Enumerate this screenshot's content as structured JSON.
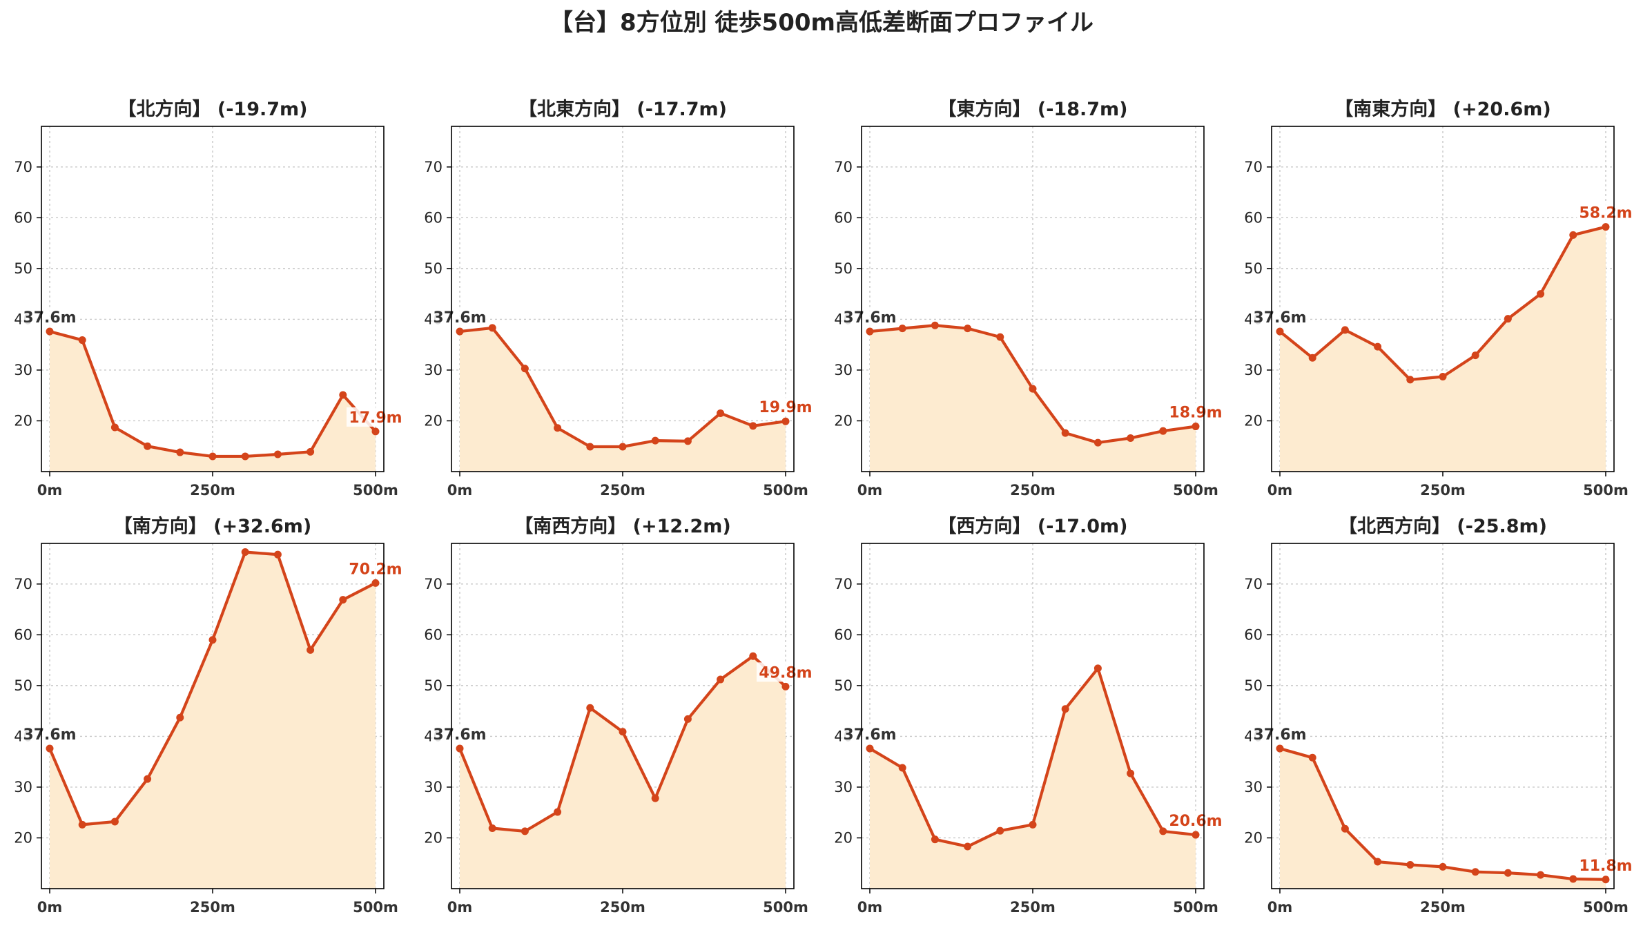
{
  "title": "【台】8方位別 徒歩500m高低差断面プロファイル",
  "colors": {
    "line": "#d4441a",
    "fill": "#fdebd0",
    "start_label": "#333333",
    "end_label": "#d4441a"
  },
  "chart_data": [
    {
      "type": "area",
      "title": "【北方向】 (-19.7m)",
      "direction": "北方向",
      "diff": "-19.7m",
      "x": [
        0,
        50,
        100,
        150,
        200,
        250,
        300,
        350,
        400,
        450,
        500
      ],
      "xtick_labels": [
        "0m",
        "250m",
        "500m"
      ],
      "ytick_labels": [
        "20",
        "30",
        "40",
        "50",
        "60",
        "70"
      ],
      "y": [
        37.6,
        35.9,
        18.7,
        15.0,
        13.8,
        13.0,
        13.0,
        13.4,
        13.9,
        25.1,
        17.9
      ],
      "start_label": "37.6m",
      "end_label": "17.9m",
      "ylim": [
        10,
        78
      ],
      "grid": true
    },
    {
      "type": "area",
      "title": "【北東方向】 (-17.7m)",
      "direction": "北東方向",
      "diff": "-17.7m",
      "x": [
        0,
        50,
        100,
        150,
        200,
        250,
        300,
        350,
        400,
        450,
        500
      ],
      "xtick_labels": [
        "0m",
        "250m",
        "500m"
      ],
      "ytick_labels": [
        "20",
        "30",
        "40",
        "50",
        "60",
        "70"
      ],
      "y": [
        37.6,
        38.3,
        30.3,
        18.6,
        14.9,
        14.9,
        16.1,
        16.0,
        21.5,
        19.0,
        19.9
      ],
      "start_label": "37.6m",
      "end_label": "19.9m",
      "ylim": [
        10,
        78
      ],
      "grid": true
    },
    {
      "type": "area",
      "title": "【東方向】 (-18.7m)",
      "direction": "東方向",
      "diff": "-18.7m",
      "x": [
        0,
        50,
        100,
        150,
        200,
        250,
        300,
        350,
        400,
        450,
        500
      ],
      "xtick_labels": [
        "0m",
        "250m",
        "500m"
      ],
      "ytick_labels": [
        "20",
        "30",
        "40",
        "50",
        "60",
        "70"
      ],
      "y": [
        37.6,
        38.2,
        38.8,
        38.2,
        36.5,
        26.3,
        17.6,
        15.7,
        16.6,
        18.0,
        18.9
      ],
      "start_label": "37.6m",
      "end_label": "18.9m",
      "ylim": [
        10,
        78
      ],
      "grid": true
    },
    {
      "type": "area",
      "title": "【南東方向】 (+20.6m)",
      "direction": "南東方向",
      "diff": "+20.6m",
      "x": [
        0,
        50,
        100,
        150,
        200,
        250,
        300,
        350,
        400,
        450,
        500
      ],
      "xtick_labels": [
        "0m",
        "250m",
        "500m"
      ],
      "ytick_labels": [
        "20",
        "30",
        "40",
        "50",
        "60",
        "70"
      ],
      "y": [
        37.6,
        32.4,
        37.9,
        34.6,
        28.1,
        28.7,
        32.9,
        40.1,
        45.0,
        56.6,
        58.2
      ],
      "start_label": "37.6m",
      "end_label": "58.2m",
      "ylim": [
        10,
        78
      ],
      "grid": true
    },
    {
      "type": "area",
      "title": "【南方向】 (+32.6m)",
      "direction": "南方向",
      "diff": "+32.6m",
      "x": [
        0,
        50,
        100,
        150,
        200,
        250,
        300,
        350,
        400,
        450,
        500
      ],
      "xtick_labels": [
        "0m",
        "250m",
        "500m"
      ],
      "ytick_labels": [
        "20",
        "30",
        "40",
        "50",
        "60",
        "70"
      ],
      "y": [
        37.6,
        22.6,
        23.2,
        31.6,
        43.7,
        59.0,
        76.3,
        75.8,
        57.0,
        66.9,
        70.2
      ],
      "start_label": "37.6m",
      "end_label": "70.2m",
      "ylim": [
        10,
        78
      ],
      "grid": true
    },
    {
      "type": "area",
      "title": "【南西方向】 (+12.2m)",
      "direction": "南西方向",
      "diff": "+12.2m",
      "x": [
        0,
        50,
        100,
        150,
        200,
        250,
        300,
        350,
        400,
        450,
        500
      ],
      "xtick_labels": [
        "0m",
        "250m",
        "500m"
      ],
      "ytick_labels": [
        "20",
        "30",
        "40",
        "50",
        "60",
        "70"
      ],
      "y": [
        37.6,
        21.9,
        21.3,
        25.1,
        45.6,
        40.9,
        27.8,
        43.4,
        51.2,
        55.8,
        49.8
      ],
      "start_label": "37.6m",
      "end_label": "49.8m",
      "ylim": [
        10,
        78
      ],
      "grid": true
    },
    {
      "type": "area",
      "title": "【西方向】 (-17.0m)",
      "direction": "西方向",
      "diff": "-17.0m",
      "x": [
        0,
        50,
        100,
        150,
        200,
        250,
        300,
        350,
        400,
        450,
        500
      ],
      "xtick_labels": [
        "0m",
        "250m",
        "500m"
      ],
      "ytick_labels": [
        "20",
        "30",
        "40",
        "50",
        "60",
        "70"
      ],
      "y": [
        37.6,
        33.8,
        19.7,
        18.3,
        21.4,
        22.6,
        45.4,
        53.4,
        32.7,
        21.3,
        20.6
      ],
      "start_label": "37.6m",
      "end_label": "20.6m",
      "ylim": [
        10,
        78
      ],
      "grid": true
    },
    {
      "type": "area",
      "title": "【北西方向】 (-25.8m)",
      "direction": "北西方向",
      "diff": "-25.8m",
      "x": [
        0,
        50,
        100,
        150,
        200,
        250,
        300,
        350,
        400,
        450,
        500
      ],
      "xtick_labels": [
        "0m",
        "250m",
        "500m"
      ],
      "ytick_labels": [
        "20",
        "30",
        "40",
        "50",
        "60",
        "70"
      ],
      "y": [
        37.6,
        35.8,
        21.8,
        15.3,
        14.7,
        14.3,
        13.3,
        13.1,
        12.7,
        11.9,
        11.8
      ],
      "start_label": "37.6m",
      "end_label": "11.8m",
      "ylim": [
        10,
        78
      ],
      "grid": true
    }
  ]
}
